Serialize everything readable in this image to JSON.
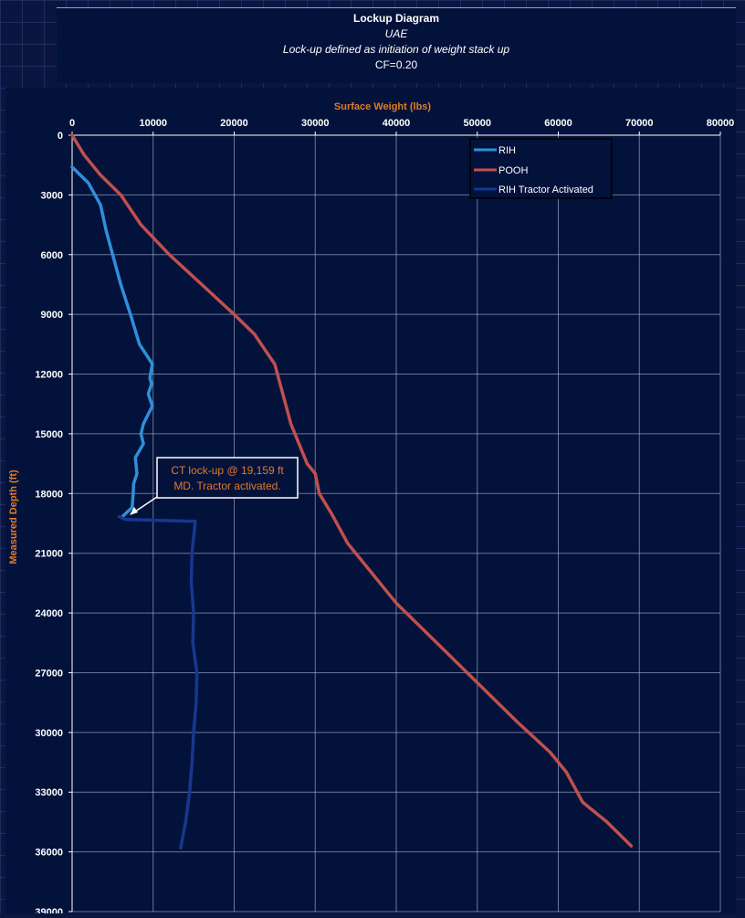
{
  "chart_data": {
    "type": "line",
    "title": "Lockup Diagram",
    "subtitle_lines": [
      "UAE",
      "Lock-up defined as initiation of weight stack up",
      "CF=0.20"
    ],
    "xlabel": "Surface Weight (lbs)",
    "ylabel": "Measured Depth (ft)",
    "xlim": [
      0,
      80000
    ],
    "ylim": [
      0,
      39000
    ],
    "y_inverted": true,
    "x_axis_position": "top",
    "x_ticks": [
      "0",
      "10000",
      "20000",
      "30000",
      "40000",
      "50000",
      "60000",
      "70000",
      "80000"
    ],
    "y_ticks": [
      "0",
      "3000",
      "6000",
      "9000",
      "12000",
      "15000",
      "18000",
      "21000",
      "24000",
      "27000",
      "30000",
      "33000",
      "36000",
      "39000"
    ],
    "grid": true,
    "legend_position": "top-right",
    "series": [
      {
        "name": "RIH",
        "color": "#2e8fd8",
        "points": [
          [
            0,
            1600
          ],
          [
            2000,
            2400
          ],
          [
            3500,
            3500
          ],
          [
            4200,
            4800
          ],
          [
            5000,
            6000
          ],
          [
            6000,
            7500
          ],
          [
            7200,
            9000
          ],
          [
            8300,
            10500
          ],
          [
            9900,
            11500
          ],
          [
            9600,
            12200
          ],
          [
            9800,
            12500
          ],
          [
            9400,
            13000
          ],
          [
            9900,
            13600
          ],
          [
            8800,
            14500
          ],
          [
            8500,
            15000
          ],
          [
            8800,
            15500
          ],
          [
            7800,
            16200
          ],
          [
            8000,
            17000
          ],
          [
            7600,
            17500
          ],
          [
            7500,
            18200
          ],
          [
            7400,
            18700
          ],
          [
            6200,
            19159
          ]
        ]
      },
      {
        "name": "POOH",
        "color": "#c0504d",
        "points": [
          [
            0,
            0
          ],
          [
            1500,
            1000
          ],
          [
            3500,
            2000
          ],
          [
            6000,
            3000
          ],
          [
            8500,
            4500
          ],
          [
            12000,
            6000
          ],
          [
            16000,
            7500
          ],
          [
            20000,
            9000
          ],
          [
            22500,
            10000
          ],
          [
            25000,
            11500
          ],
          [
            26000,
            13000
          ],
          [
            27000,
            14500
          ],
          [
            28000,
            15500
          ],
          [
            29000,
            16500
          ],
          [
            30000,
            17000
          ],
          [
            30500,
            18000
          ],
          [
            32000,
            19000
          ],
          [
            34000,
            20500
          ],
          [
            37000,
            22000
          ],
          [
            39000,
            23000
          ],
          [
            40000,
            23500
          ],
          [
            45000,
            25500
          ],
          [
            50000,
            27500
          ],
          [
            55000,
            29500
          ],
          [
            59000,
            31000
          ],
          [
            61000,
            32000
          ],
          [
            63000,
            33500
          ],
          [
            66000,
            34500
          ],
          [
            69000,
            35700
          ]
        ]
      },
      {
        "name": "RIH Tractor Activated",
        "color": "#17378f",
        "points": [
          [
            5800,
            19159
          ],
          [
            6500,
            19300
          ],
          [
            15200,
            19400
          ],
          [
            14800,
            21000
          ],
          [
            14700,
            22500
          ],
          [
            15000,
            24000
          ],
          [
            14900,
            25500
          ],
          [
            15400,
            27000
          ],
          [
            15300,
            28500
          ],
          [
            15000,
            30000
          ],
          [
            14800,
            31500
          ],
          [
            14500,
            33000
          ],
          [
            14000,
            34500
          ],
          [
            13400,
            35800
          ]
        ]
      }
    ],
    "annotation": {
      "lines": [
        "CT lock-up @ 19,159 ft",
        "MD.  Tractor activated."
      ],
      "color": "#e07b28",
      "arrow_target": [
        6500,
        19159
      ]
    }
  }
}
